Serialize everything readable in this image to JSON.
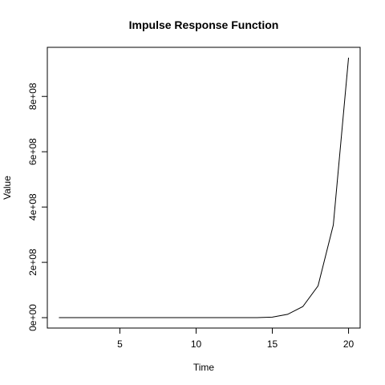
{
  "chart_data": {
    "type": "line",
    "title": "Impulse Response Function",
    "xlabel": "Time",
    "ylabel": "Value",
    "x": [
      1,
      2,
      3,
      4,
      5,
      6,
      7,
      8,
      9,
      10,
      11,
      12,
      13,
      14,
      15,
      16,
      17,
      18,
      19,
      20
    ],
    "y": [
      0,
      0,
      0,
      0,
      0,
      0,
      0,
      0,
      0,
      0,
      0,
      0,
      0,
      0,
      2000000,
      12000000,
      40000000,
      115000000,
      335000000,
      940000000
    ],
    "xlim": [
      0.24,
      20.76
    ],
    "ylim": [
      -37600000,
      977600000
    ],
    "xticks": [
      5,
      10,
      15,
      20
    ],
    "xtick_labels": [
      "5",
      "10",
      "15",
      "20"
    ],
    "yticks": [
      0,
      200000000,
      400000000,
      600000000,
      800000000
    ],
    "ytick_labels": [
      "0e+00",
      "2e+08",
      "4e+08",
      "6e+08",
      "8e+08"
    ],
    "line_color": "#000000",
    "grid": false,
    "legend": "none"
  }
}
